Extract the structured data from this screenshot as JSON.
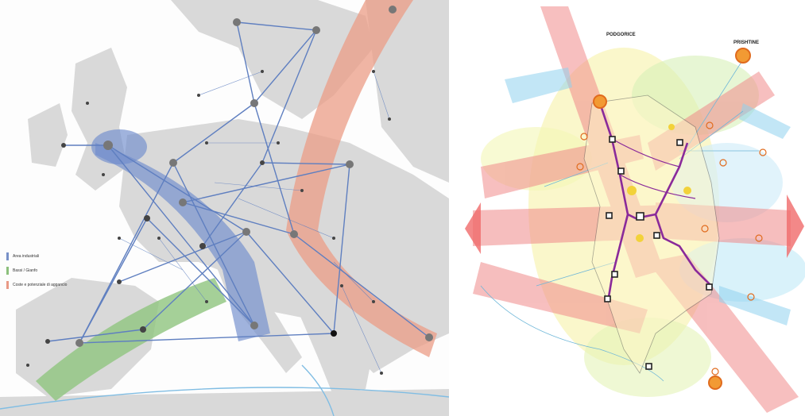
{
  "left_map": {
    "legend": [
      {
        "label": "Area industriali",
        "color": "#7891c8"
      },
      {
        "label": "Bassi / Gianfo",
        "color": "#8cc07c"
      },
      {
        "label": "Coste e potenziale di aggancio",
        "color": "#e99a86"
      }
    ],
    "colors": {
      "land": "#d7d7d7",
      "sea": "#fdfdfd",
      "link": "#5f7fc0",
      "node": "#444444"
    }
  },
  "right_map": {
    "labels": {
      "north": "PRISHTINE",
      "west": "PODGORICE"
    },
    "colors": {
      "route": "#8a2a9a",
      "arrow_red": "#f08080",
      "arrow_blue": "#8fd2ee",
      "node_orange": "#f29a33"
    }
  }
}
